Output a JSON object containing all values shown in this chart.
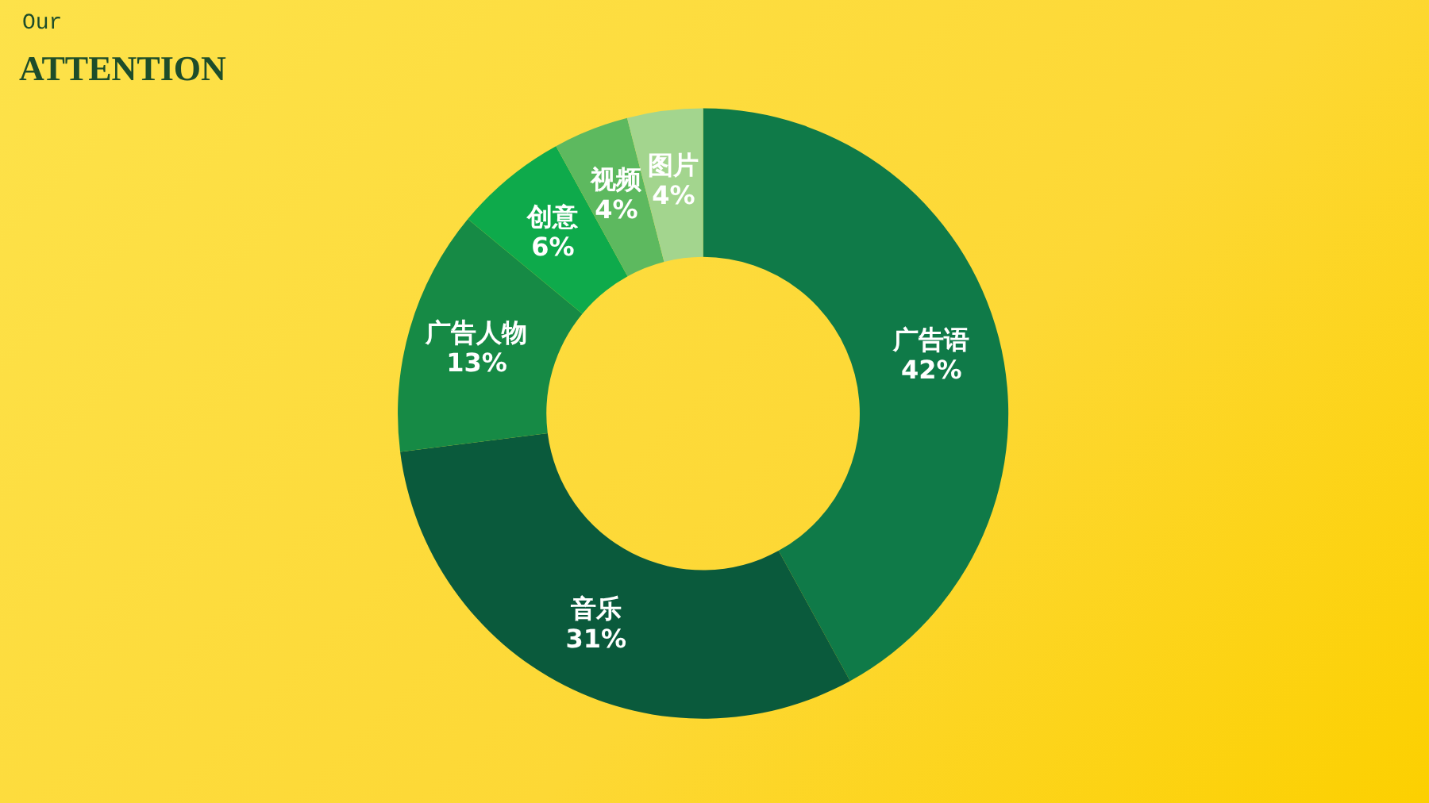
{
  "chart_data": {
    "type": "donut",
    "title": "ATTENTION",
    "subtitle": "Our",
    "categories": [
      "广告语",
      "音乐",
      "广告人物",
      "创意",
      "视频",
      "图片"
    ],
    "values": [
      42,
      31,
      13,
      6,
      4,
      4
    ],
    "colors": [
      "#0f7a48",
      "#0a5a3c",
      "#168a45",
      "#0eaa4b",
      "#5db95f",
      "#a3d58e"
    ],
    "value_labels": [
      "42%",
      "31%",
      "13%",
      "6%",
      "4%",
      "4%"
    ],
    "legend": false
  }
}
